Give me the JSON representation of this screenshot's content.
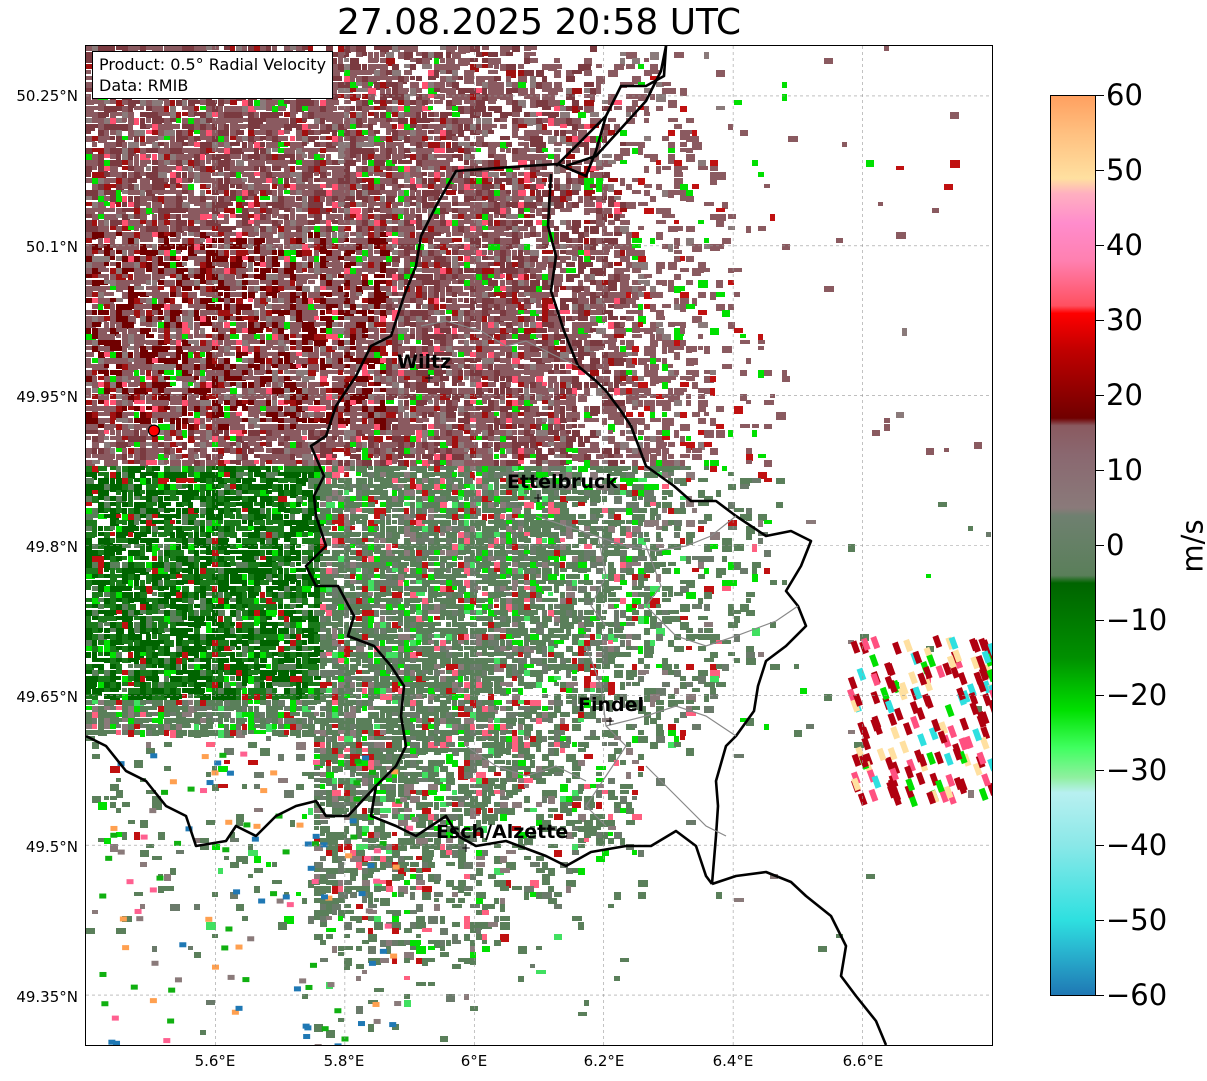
{
  "title": "27.08.2025 20:58 UTC",
  "info_box": {
    "product": "Product: 0.5° Radial Velocity",
    "data": "Data: RMIB"
  },
  "map": {
    "lat_ticks": [
      "50.25°N",
      "50.1°N",
      "49.95°N",
      "49.8°N",
      "49.65°N",
      "49.5°N",
      "49.35°N"
    ],
    "lon_ticks": [
      "5.6°E",
      "5.8°E",
      "6°E",
      "6.2°E",
      "6.4°E",
      "6.6°E"
    ],
    "cities": [
      {
        "name": "Wiltz",
        "lon": 5.93,
        "lat": 49.97
      },
      {
        "name": "Ettelbruck",
        "lon": 6.1,
        "lat": 49.85
      },
      {
        "name": "Findel",
        "lon": 6.21,
        "lat": 49.63
      },
      {
        "name": "Esch/Alzette",
        "lon": 5.99,
        "lat": 49.5
      }
    ],
    "radar_site": {
      "lon": 5.505,
      "lat": 49.915
    },
    "extent": {
      "lon_min": 5.4,
      "lon_max": 6.8,
      "lat_min": 49.3,
      "lat_max": 50.3
    }
  },
  "colorbar": {
    "unit": "m/s",
    "range": [
      -60,
      60
    ],
    "tick_labels": [
      "60",
      "50",
      "40",
      "30",
      "20",
      "10",
      "0",
      "−10",
      "−20",
      "−30",
      "−40",
      "−50",
      "−60"
    ],
    "colors": {
      "negative_far": "#1f78b4",
      "negative_cyan": "#2ee0e0",
      "negative_light_cyan": "#b8f0f0",
      "negative_light_green": "#90f0a0",
      "negative_green": "#00e000",
      "negative_dark_green": "#006400",
      "near_zero_green": "#5a7f5a",
      "near_zero_gray": "#8a7a7a",
      "positive_mauve": "#8a5a60",
      "positive_dark_red": "#700000",
      "positive_red": "#ff0000",
      "positive_pink": "#ff8ccc",
      "positive_peach": "#ffe0a0",
      "positive_orange": "#ffa060"
    }
  }
}
